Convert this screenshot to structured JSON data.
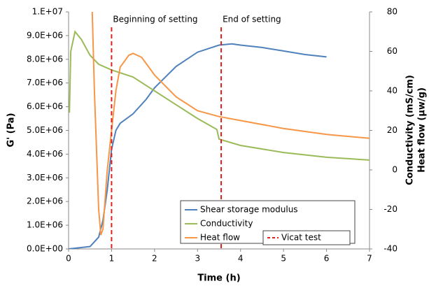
{
  "chart_data": {
    "type": "line",
    "xlabel": "Time (h)",
    "ylabel": "G' (Pa)",
    "y2label": [
      "Conductivity (mS/cm)",
      "Heat flow (µw/g)"
    ],
    "xlim": [
      0,
      7
    ],
    "xticks": [
      0,
      1,
      2,
      3,
      4,
      5,
      6,
      7
    ],
    "ylim": [
      0,
      10000000
    ],
    "yticks": [
      {
        "value": 0,
        "label": "0.0E+00"
      },
      {
        "value": 1000000,
        "label": "1.0E+06"
      },
      {
        "value": 2000000,
        "label": "2.0E+06"
      },
      {
        "value": 3000000,
        "label": "3.0E+06"
      },
      {
        "value": 4000000,
        "label": "4.0E+06"
      },
      {
        "value": 5000000,
        "label": "5.0E+06"
      },
      {
        "value": 6000000,
        "label": "6.0E+06"
      },
      {
        "value": 7000000,
        "label": "7.0E+06"
      },
      {
        "value": 8000000,
        "label": "8.0E+06"
      },
      {
        "value": 9000000,
        "label": "9.0E+06"
      },
      {
        "value": 10000000,
        "label": "1.E+07"
      }
    ],
    "y2lim": [
      -40,
      80
    ],
    "y2ticks": [
      -40,
      -20,
      0,
      20,
      40,
      60,
      80
    ],
    "series": [
      {
        "name": "Shear storage modulus",
        "color": "#4f81bd",
        "x": [
          0,
          0.5,
          0.7,
          0.8,
          0.9,
          1.0,
          1.1,
          1.2,
          1.5,
          1.8,
          2.0,
          2.5,
          3.0,
          3.5,
          3.8,
          4.0,
          4.5,
          5.0,
          5.5,
          6.0
        ],
        "values": [
          0,
          100000,
          500000,
          1200000,
          2500000,
          4200000,
          5000000,
          5300000,
          5700000,
          6300000,
          6800000,
          7700000,
          8300000,
          8600000,
          8650000,
          8600000,
          8500000,
          8350000,
          8200000,
          8100000
        ]
      },
      {
        "name": "Conductivity",
        "color": "#9bbb59",
        "axis": "y2",
        "x": [
          0.02,
          0.05,
          0.15,
          0.3,
          0.5,
          0.7,
          1.0,
          1.5,
          2.0,
          2.5,
          3.0,
          3.45,
          3.5,
          4.0,
          5.0,
          6.0,
          7.0
        ],
        "values": [
          29,
          60,
          70,
          66,
          58,
          53.5,
          50.6,
          47,
          40,
          33,
          26,
          20.5,
          15.6,
          12.4,
          8.8,
          6.4,
          5
        ]
      },
      {
        "name": "Heat flow",
        "color": "#f79646",
        "axis": "y2",
        "x": [
          0.55,
          0.6,
          0.7,
          0.75,
          0.8,
          0.9,
          1.0,
          1.1,
          1.2,
          1.4,
          1.5,
          1.7,
          2.0,
          2.5,
          3.0,
          3.5,
          4.0,
          5.0,
          6.0,
          7.0
        ],
        "values": [
          80,
          40,
          -20,
          -33,
          -30,
          0,
          20,
          40,
          52,
          58,
          59,
          57,
          48,
          37,
          30,
          27,
          25,
          21,
          18,
          16
        ]
      }
    ],
    "vlines": {
      "name": "Vicat test",
      "color": "#e0201c",
      "x": [
        1,
        3.55
      ]
    },
    "annotations": [
      {
        "text": "Beginning of setting",
        "x": 1
      },
      {
        "text": "End of setting",
        "x": 3.55
      }
    ]
  }
}
